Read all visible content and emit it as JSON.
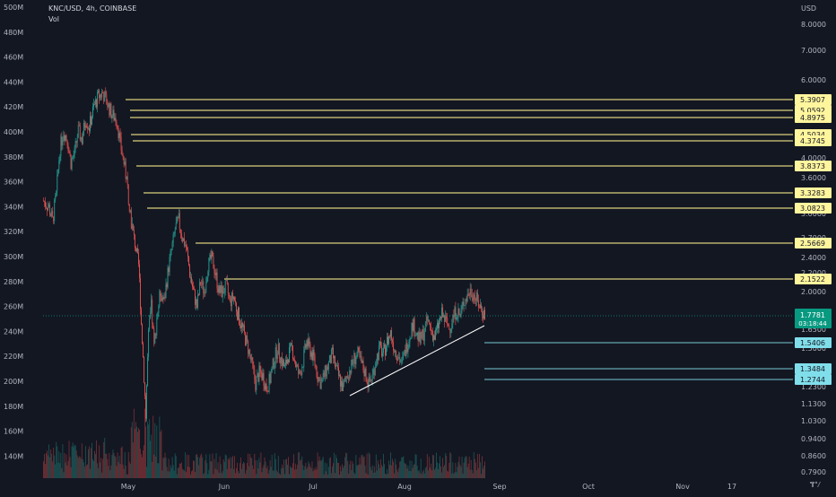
{
  "header": {
    "symbol": "KNC/USD, 4h, COINBASE",
    "volume_label": "Vol",
    "currency": "USD"
  },
  "colors": {
    "background": "#131722",
    "up": "#26a69a",
    "down": "#ef5350",
    "level_line": "#8f8a5a",
    "trend_line": "#ffffff",
    "current": "#089981",
    "yellow_label": "#fff59d",
    "cyan_label": "#80deea",
    "grid_text": "#b2b5be"
  },
  "icons": {
    "logo": "tradingview-logo-icon"
  },
  "chart_data": {
    "type": "candlestick",
    "title": "KNC/USD, 4h, COINBASE",
    "x_ticks": [
      "May",
      "Jun",
      "Jul",
      "Aug",
      "Sep",
      "Oct",
      "Nov",
      "17"
    ],
    "right_axis_ticks": [
      "8.0000",
      "7.0000",
      "6.0000",
      "4.0000",
      "3.6000",
      "3.0000",
      "2.7000",
      "2.4000",
      "2.2000",
      "2.0000",
      "1.6500",
      "1.5000",
      "1.2300",
      "1.1300",
      "1.0300",
      "0.9400",
      "0.8600",
      "0.7900"
    ],
    "left_axis_ticks": [
      "500M",
      "480M",
      "460M",
      "440M",
      "420M",
      "400M",
      "380M",
      "360M",
      "340M",
      "320M",
      "300M",
      "280M",
      "260M",
      "240M",
      "220M",
      "200M",
      "180M",
      "160M",
      "140M"
    ],
    "y_scale": "log",
    "ylim": [
      0.79,
      8.0
    ],
    "current_price": "1.7781",
    "countdown": "03:18:44",
    "resistance_levels": [
      "5.3907",
      "5.0592",
      "4.8975",
      "4.5034",
      "4.3745",
      "3.8373",
      "3.3283",
      "3.0823",
      "2.5669",
      "2.1522"
    ],
    "support_levels": [
      "1.5406",
      "1.3484",
      "1.2744"
    ],
    "price_path": [
      [
        0,
        3.2
      ],
      [
        6,
        3.1
      ],
      [
        10,
        2.9
      ],
      [
        14,
        3.3
      ],
      [
        18,
        4.2
      ],
      [
        22,
        4.6
      ],
      [
        26,
        4.4
      ],
      [
        30,
        3.9
      ],
      [
        34,
        4.1
      ],
      [
        38,
        4.6
      ],
      [
        42,
        4.4
      ],
      [
        46,
        4.9
      ],
      [
        50,
        4.7
      ],
      [
        55,
        5.2
      ],
      [
        60,
        5.5
      ],
      [
        65,
        5.6
      ],
      [
        70,
        5.3
      ],
      [
        75,
        5.0
      ],
      [
        80,
        4.9
      ],
      [
        84,
        4.3
      ],
      [
        88,
        3.9
      ],
      [
        92,
        3.4
      ],
      [
        96,
        2.9
      ],
      [
        100,
        2.6
      ],
      [
        104,
        2.3
      ],
      [
        107,
        1.7
      ],
      [
        110,
        1.3
      ],
      [
        112,
        1.05
      ],
      [
        115,
        1.6
      ],
      [
        118,
        1.85
      ],
      [
        121,
        1.5
      ],
      [
        124,
        1.75
      ],
      [
        128,
        2.0
      ],
      [
        132,
        1.9
      ],
      [
        136,
        2.2
      ],
      [
        140,
        2.5
      ],
      [
        144,
        2.8
      ],
      [
        148,
        2.9
      ],
      [
        152,
        2.7
      ],
      [
        156,
        2.55
      ],
      [
        160,
        2.2
      ],
      [
        164,
        2.0
      ],
      [
        168,
        1.85
      ],
      [
        172,
        2.1
      ],
      [
        176,
        2.0
      ],
      [
        180,
        2.3
      ],
      [
        184,
        2.4
      ],
      [
        188,
        2.2
      ],
      [
        192,
        2.0
      ],
      [
        196,
        2.0
      ],
      [
        200,
        2.05
      ],
      [
        204,
        1.9
      ],
      [
        208,
        1.95
      ],
      [
        212,
        1.8
      ],
      [
        216,
        1.7
      ],
      [
        220,
        1.6
      ],
      [
        224,
        1.5
      ],
      [
        228,
        1.38
      ],
      [
        232,
        1.25
      ],
      [
        236,
        1.32
      ],
      [
        240,
        1.3
      ],
      [
        244,
        1.22
      ],
      [
        248,
        1.28
      ],
      [
        252,
        1.4
      ],
      [
        256,
        1.5
      ],
      [
        260,
        1.42
      ],
      [
        264,
        1.35
      ],
      [
        268,
        1.45
      ],
      [
        272,
        1.5
      ],
      [
        276,
        1.38
      ],
      [
        280,
        1.3
      ],
      [
        284,
        1.4
      ],
      [
        288,
        1.55
      ],
      [
        292,
        1.48
      ],
      [
        296,
        1.42
      ],
      [
        300,
        1.3
      ],
      [
        304,
        1.25
      ],
      [
        308,
        1.32
      ],
      [
        312,
        1.38
      ],
      [
        316,
        1.45
      ],
      [
        320,
        1.35
      ],
      [
        324,
        1.28
      ],
      [
        328,
        1.22
      ],
      [
        332,
        1.3
      ],
      [
        336,
        1.35
      ],
      [
        340,
        1.42
      ],
      [
        344,
        1.45
      ],
      [
        348,
        1.38
      ],
      [
        352,
        1.32
      ],
      [
        356,
        1.25
      ],
      [
        360,
        1.3
      ],
      [
        364,
        1.42
      ],
      [
        368,
        1.5
      ],
      [
        372,
        1.45
      ],
      [
        376,
        1.55
      ],
      [
        380,
        1.62
      ],
      [
        384,
        1.5
      ],
      [
        388,
        1.45
      ],
      [
        392,
        1.38
      ],
      [
        396,
        1.48
      ],
      [
        400,
        1.58
      ],
      [
        404,
        1.7
      ],
      [
        408,
        1.62
      ],
      [
        412,
        1.55
      ],
      [
        416,
        1.62
      ],
      [
        420,
        1.72
      ],
      [
        424,
        1.65
      ],
      [
        428,
        1.58
      ],
      [
        432,
        1.68
      ],
      [
        436,
        1.78
      ],
      [
        440,
        1.72
      ],
      [
        444,
        1.66
      ],
      [
        448,
        1.75
      ],
      [
        452,
        1.82
      ],
      [
        456,
        1.76
      ],
      [
        460,
        1.9
      ],
      [
        464,
        1.96
      ],
      [
        468,
        2.02
      ],
      [
        472,
        1.95
      ],
      [
        476,
        1.88
      ],
      [
        480,
        1.82
      ],
      [
        484,
        1.76
      ]
    ]
  }
}
